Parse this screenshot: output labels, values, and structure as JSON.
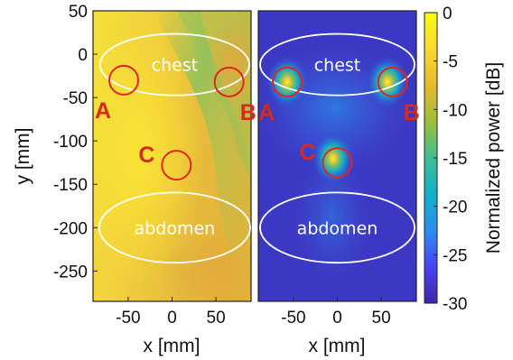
{
  "chart_data": [
    {
      "type": "heatmap",
      "xlabel": "x [mm]",
      "ylabel": "y [mm]",
      "xlim": [
        -90,
        90
      ],
      "ylim": [
        -285,
        50
      ],
      "xticks": [
        -50,
        0,
        50
      ],
      "yticks": [
        50,
        0,
        -50,
        -100,
        -150,
        -200,
        -250
      ],
      "regions": [
        {
          "label": "chest",
          "cx": 3,
          "cy": -12,
          "rx": 85,
          "ry": 35
        },
        {
          "label": "abdomen",
          "cx": 3,
          "cy": -200,
          "rx": 86,
          "ry": 40
        }
      ],
      "markers": [
        {
          "label": "A",
          "x": -55,
          "y": -30
        },
        {
          "label": "B",
          "x": 65,
          "y": -32
        },
        {
          "label": "C",
          "x": 5,
          "y": -128
        }
      ]
    },
    {
      "type": "heatmap",
      "xlabel": "x [mm]",
      "xlim": [
        -90,
        90
      ],
      "ylim": [
        -285,
        50
      ],
      "xticks": [
        -50,
        0,
        50
      ],
      "regions": [
        {
          "label": "chest",
          "cx": 0,
          "cy": -12,
          "rx": 88,
          "ry": 35
        },
        {
          "label": "abdomen",
          "cx": 0,
          "cy": -200,
          "rx": 88,
          "ry": 40
        }
      ],
      "markers": [
        {
          "label": "A",
          "x": -57,
          "y": -32
        },
        {
          "label": "B",
          "x": 63,
          "y": -32
        },
        {
          "label": "C",
          "x": 0,
          "y": -125
        }
      ],
      "hotspots": [
        {
          "x": -57,
          "y": -32
        },
        {
          "x": 57,
          "y": -32
        },
        {
          "x": -5,
          "y": -120
        }
      ]
    }
  ],
  "colorbar": {
    "label": "Normalized power [dB]",
    "min": -30,
    "max": 0,
    "ticks": [
      0,
      -5,
      -10,
      -15,
      -20,
      -25,
      -30
    ],
    "colors": [
      "#3e26a8",
      "#4743f8",
      "#2d8cef",
      "#10b2ca",
      "#3ebf93",
      "#9dbf3a",
      "#e8b92a",
      "#fcd832",
      "#f9fb0e"
    ]
  }
}
